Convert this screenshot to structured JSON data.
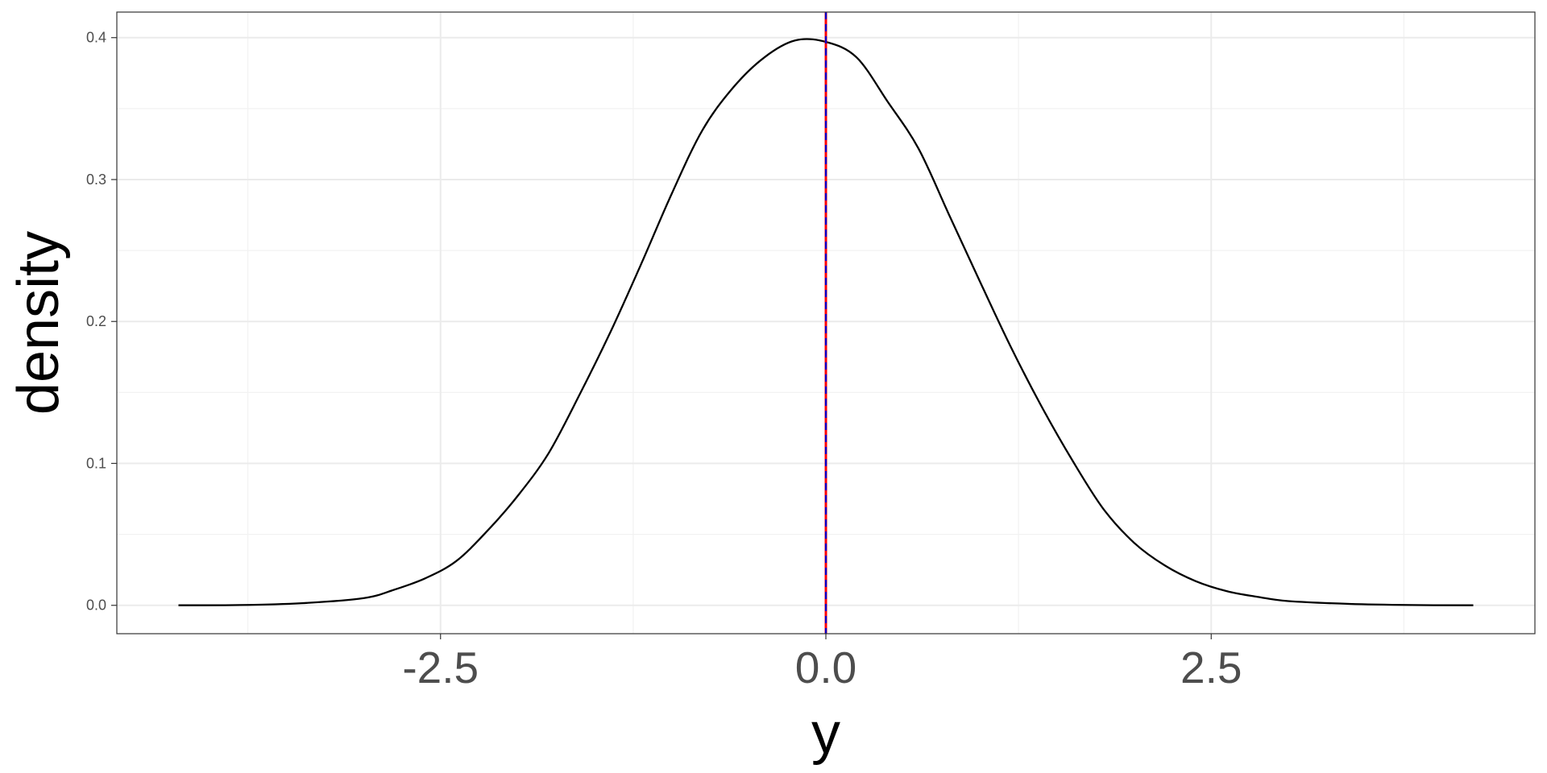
{
  "chart_data": {
    "type": "line",
    "title": "",
    "xlabel": "y",
    "ylabel": "density",
    "xlim": [
      -4.6,
      4.6
    ],
    "ylim": [
      -0.02,
      0.418
    ],
    "x_ticks": [
      {
        "value": -2.5,
        "label": "-2.5"
      },
      {
        "value": 0.0,
        "label": "0.0"
      },
      {
        "value": 2.5,
        "label": "2.5"
      }
    ],
    "y_ticks": [
      {
        "value": 0.0,
        "label": "0.0"
      },
      {
        "value": 0.1,
        "label": "0.1"
      },
      {
        "value": 0.2,
        "label": "0.2"
      },
      {
        "value": 0.3,
        "label": "0.3"
      },
      {
        "value": 0.4,
        "label": "0.4"
      }
    ],
    "x_minor": [
      -3.75,
      -1.25,
      1.25,
      3.75
    ],
    "y_minor": [
      0.05,
      0.15,
      0.25,
      0.35
    ],
    "grid": true,
    "series": [
      {
        "color": "#000000",
        "x": [
          -4.2,
          -3.8,
          -3.4,
          -3.0,
          -2.8,
          -2.6,
          -2.4,
          -2.2,
          -2.0,
          -1.8,
          -1.6,
          -1.4,
          -1.2,
          -1.0,
          -0.8,
          -0.6,
          -0.4,
          -0.2,
          0.0,
          0.2,
          0.4,
          0.6,
          0.8,
          1.0,
          1.2,
          1.4,
          1.6,
          1.8,
          2.0,
          2.2,
          2.4,
          2.6,
          2.8,
          3.0,
          3.4,
          3.8,
          4.2
        ],
        "y": [
          0.0,
          0.0002,
          0.0015,
          0.005,
          0.011,
          0.019,
          0.031,
          0.052,
          0.077,
          0.107,
          0.148,
          0.192,
          0.24,
          0.29,
          0.335,
          0.365,
          0.386,
          0.398,
          0.397,
          0.386,
          0.355,
          0.322,
          0.275,
          0.228,
          0.182,
          0.14,
          0.102,
          0.068,
          0.044,
          0.028,
          0.017,
          0.01,
          0.006,
          0.003,
          0.001,
          0.0002,
          0.0
        ]
      }
    ],
    "vlines": [
      {
        "x": 0.0,
        "color": "#ff0000",
        "style": "solid"
      },
      {
        "x": 0.0,
        "color": "#0000cc",
        "style": "dashed"
      }
    ]
  }
}
